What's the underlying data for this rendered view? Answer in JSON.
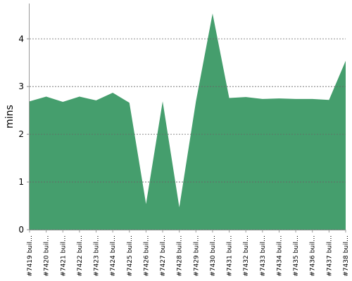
{
  "chart_data": {
    "type": "area",
    "y_label": "mins",
    "categories": [
      "#7419 buil…",
      "#7420 buil…",
      "#7421 buil…",
      "#7422 buil…",
      "#7423 buil…",
      "#7424 buil…",
      "#7425 buil…",
      "#7426 buil…",
      "#7427 buil…",
      "#7428 buil…",
      "#7429 buil…",
      "#7430 buil…",
      "#7431 buil…",
      "#7432 buil…",
      "#7433 buil…",
      "#7434 buil…",
      "#7435 buil…",
      "#7436 buil…",
      "#7437 buil…",
      "#7438 buil…"
    ],
    "values": [
      2.69,
      2.79,
      2.68,
      2.79,
      2.71,
      2.87,
      2.66,
      0.54,
      2.69,
      0.47,
      2.69,
      4.53,
      2.76,
      2.78,
      2.74,
      2.75,
      2.74,
      2.74,
      2.72,
      3.54
    ],
    "color": "#459e6d",
    "ylim": [
      0,
      4.74
    ],
    "yticks": [
      0,
      1,
      2,
      3,
      4
    ],
    "grid": true
  }
}
